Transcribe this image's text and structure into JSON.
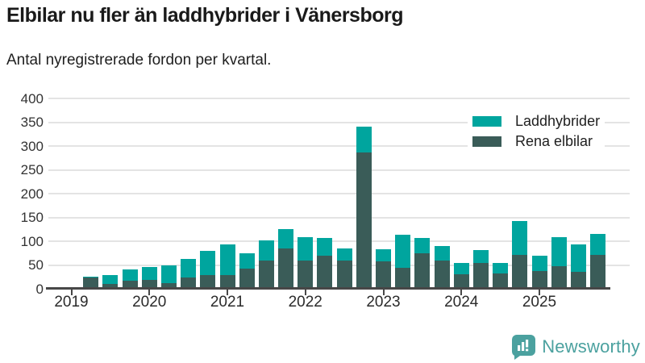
{
  "header": {
    "title": "Elbilar nu fler än laddhybrider i Vänersborg",
    "subtitle": "Antal nyregistrerade fordon per kvartal."
  },
  "legend": [
    {
      "label": "Laddhybrider",
      "color": "#00a59e"
    },
    {
      "label": "Rena elbilar",
      "color": "#3a5c58"
    }
  ],
  "footer": {
    "brand": "Newsworthy",
    "logo_color": "#4ba19f",
    "logo_icon": "bar-chart-speech-bubble"
  },
  "chart_data": {
    "type": "bar",
    "stacked": true,
    "title": "Elbilar nu fler än laddhybrider i Vänersborg",
    "subtitle": "Antal nyregistrerade fordon per kvartal.",
    "xlabel": "",
    "ylabel": "",
    "ylim": [
      0,
      400
    ],
    "ytick_step": 50,
    "yticks": [
      0,
      50,
      100,
      150,
      200,
      250,
      300,
      350,
      400
    ],
    "grid": true,
    "legend_position": "top-right",
    "x_year_labels": [
      "2019",
      "2020",
      "2021",
      "2022",
      "2023",
      "2024",
      "2025"
    ],
    "categories": [
      "2019 Q2",
      "2019 Q3",
      "2019 Q4",
      "2020 Q1",
      "2020 Q2",
      "2020 Q3",
      "2020 Q4",
      "2021 Q1",
      "2021 Q2",
      "2021 Q3",
      "2021 Q4",
      "2022 Q1",
      "2022 Q2",
      "2022 Q3",
      "2022 Q4",
      "2023 Q1",
      "2023 Q2",
      "2023 Q3",
      "2023 Q4",
      "2024 Q1",
      "2024 Q2",
      "2024 Q3",
      "2024 Q4",
      "2025 Q1",
      "2025 Q2",
      "2025 Q3",
      "2025 Q4"
    ],
    "series": [
      {
        "name": "Rena elbilar",
        "color": "#3a5c58",
        "stack_order": "bottom",
        "values": [
          23,
          10,
          17,
          19,
          12,
          24,
          29,
          29,
          43,
          59,
          84,
          60,
          69,
          60,
          286,
          58,
          44,
          74,
          59,
          31,
          54,
          32,
          72,
          37,
          48,
          35,
          72
        ]
      },
      {
        "name": "Laddhybrider",
        "color": "#00a59e",
        "stack_order": "top",
        "values": [
          2,
          19,
          23,
          26,
          38,
          38,
          50,
          64,
          32,
          43,
          42,
          49,
          37,
          25,
          55,
          25,
          69,
          32,
          31,
          23,
          28,
          23,
          71,
          33,
          60,
          59,
          43
        ]
      }
    ],
    "totals": [
      25,
      29,
      40,
      45,
      50,
      62,
      79,
      93,
      75,
      102,
      126,
      109,
      106,
      85,
      341,
      83,
      113,
      106,
      90,
      54,
      82,
      55,
      143,
      70,
      108,
      94,
      115
    ]
  }
}
